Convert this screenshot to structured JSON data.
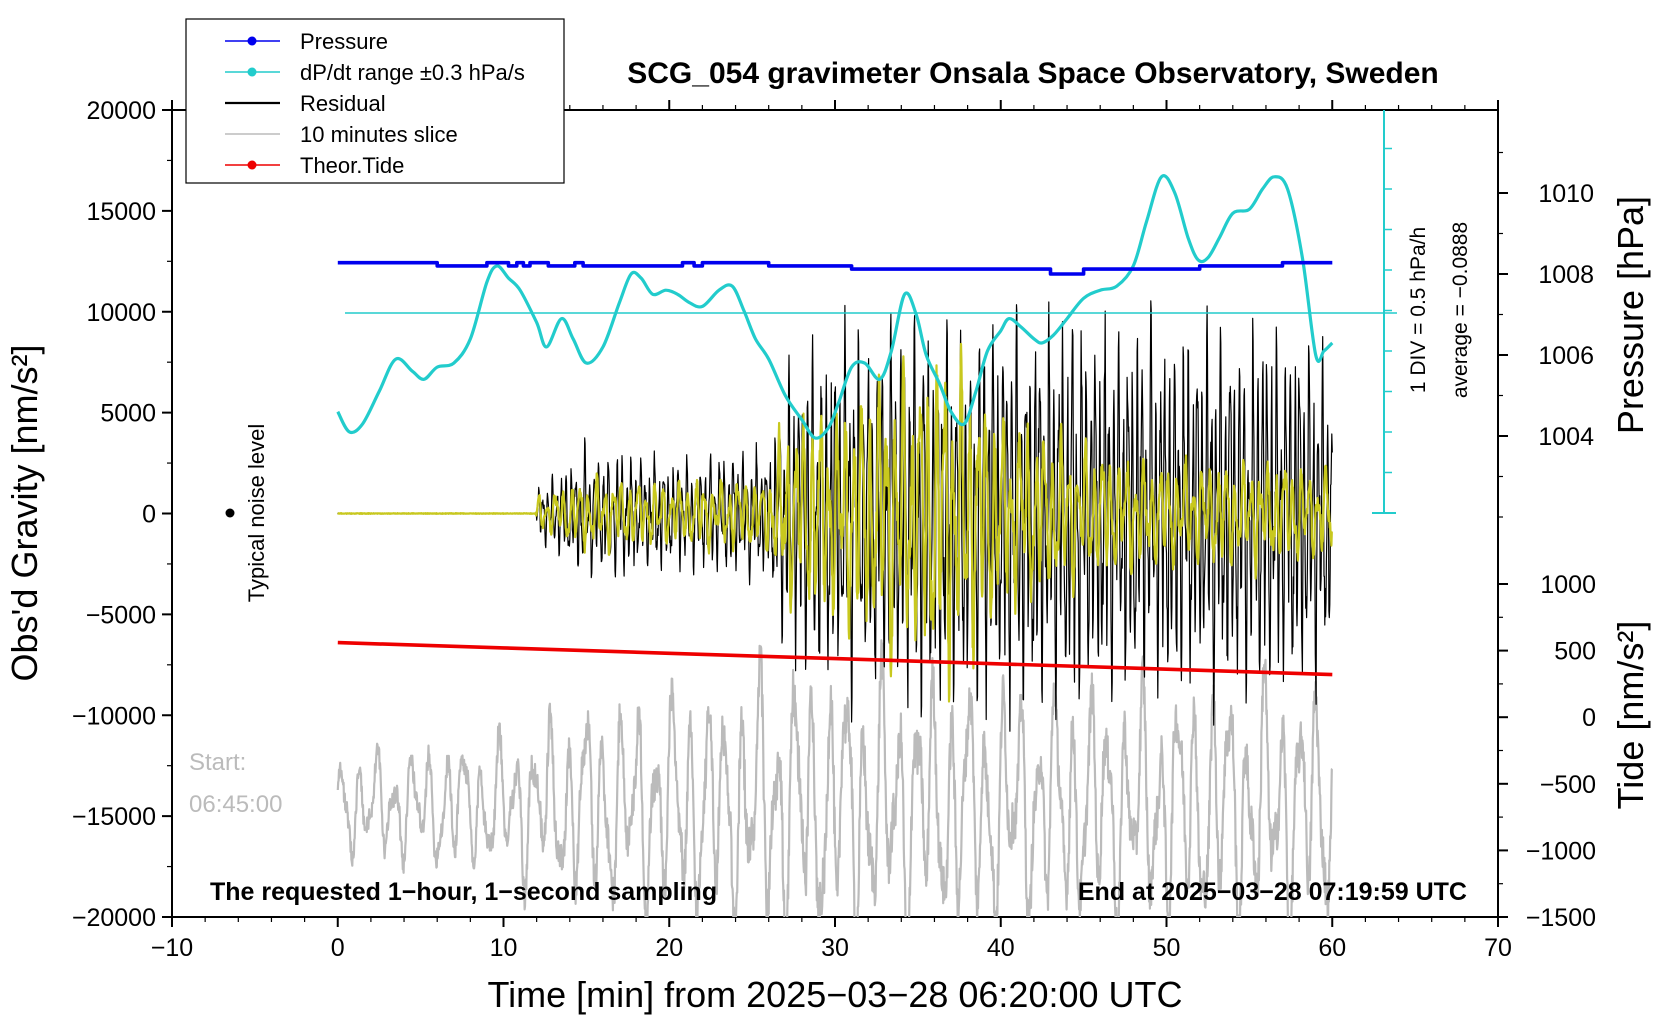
{
  "chart_data": {
    "type": "line",
    "title": "SCG_054 gravimeter Onsala Space Observatory, Sweden",
    "xlabel": "Time [min] from 2025−03−28 06:20:00 UTC",
    "ylabel_left": "Obs'd Gravity [nm/s²]",
    "ylabel_right_pressure": "Pressure [hPa]",
    "ylabel_right_tide": "Tide [nm/s²]",
    "xlim": [
      -10,
      70
    ],
    "ylim_gravity": [
      -20000,
      20000
    ],
    "ylim_pressure": [
      1002.0,
      1012.0
    ],
    "ylim_tide": [
      -1500,
      1500
    ],
    "x_ticks": [
      "−10",
      "0",
      "10",
      "20",
      "30",
      "40",
      "50",
      "60",
      "70"
    ],
    "y_ticks_gravity": [
      "20000",
      "15000",
      "10000",
      "5000",
      "0",
      "−5000",
      "−10000",
      "−15000",
      "−20000"
    ],
    "y_ticks_pressure": [
      "1010",
      "1008",
      "1006",
      "1004"
    ],
    "y_ticks_tide": [
      "1000",
      "500",
      "0",
      "−500",
      "−1000",
      "−1500"
    ],
    "legend": {
      "position": "top-left",
      "entries": [
        {
          "label": "Pressure",
          "color": "#0000ee",
          "marker": "dot"
        },
        {
          "label": "dP/dt range ±0.3 hPa/s",
          "color": "#22cccc",
          "marker": "dot"
        },
        {
          "label": "Residual",
          "color": "#000000",
          "marker": "none"
        },
        {
          "label": "10 minutes slice",
          "color": "#bbbbbb",
          "marker": "none"
        },
        {
          "label": "Theor.Tide",
          "color": "#ee0000",
          "marker": "dot"
        }
      ]
    },
    "annotations": {
      "noise_label": "Typical noise level",
      "start_label": "Start:",
      "start_time": "06:45:00",
      "bottom_left": "The requested 1−hour, 1−second sampling",
      "bottom_right": "End at 2025−03−28 07:19:59 UTC",
      "div_label": "1 DIV = 0.5 hPa/h",
      "average_label": "average = −0.0888"
    },
    "series": [
      {
        "name": "Pressure",
        "axis": "pressure",
        "color": "#0000ee",
        "x": [
          0,
          6,
          6,
          9,
          9,
          10.3,
          10.3,
          10.8,
          10.8,
          11.2,
          11.2,
          11.6,
          11.6,
          12.7,
          12.7,
          14.3,
          14.3,
          14.8,
          14.8,
          20.8,
          20.8,
          21.5,
          21.5,
          22.0,
          22.0,
          26.0,
          26.0,
          31.0,
          31.0,
          43.0,
          43.0,
          45.0,
          45.0,
          52.0,
          52.0,
          57.0,
          57.0,
          60.0
        ],
        "y": [
          1008.28,
          1008.28,
          1008.2,
          1008.2,
          1008.28,
          1008.28,
          1008.2,
          1008.2,
          1008.28,
          1008.28,
          1008.2,
          1008.2,
          1008.28,
          1008.28,
          1008.2,
          1008.2,
          1008.28,
          1008.28,
          1008.2,
          1008.2,
          1008.28,
          1008.28,
          1008.2,
          1008.2,
          1008.28,
          1008.28,
          1008.2,
          1008.2,
          1008.12,
          1008.12,
          1008.0,
          1008.0,
          1008.12,
          1008.12,
          1008.2,
          1008.2,
          1008.28,
          1008.28
        ]
      },
      {
        "name": "dP/dt range ±0.3 hPa/s",
        "axis": "pressure",
        "color": "#22cccc",
        "x": [
          0,
          0.7,
          1.5,
          2.5,
          3.5,
          4.5,
          5.2,
          6.0,
          7.0,
          8.0,
          9.0,
          9.6,
          10.3,
          11.0,
          12.0,
          12.6,
          13.5,
          14.2,
          15.0,
          16.0,
          17.0,
          17.7,
          18.3,
          19.0,
          19.8,
          20.5,
          21.2,
          22.0,
          23.0,
          23.8,
          24.5,
          25.2,
          26.0,
          27.0,
          28.0,
          28.8,
          29.6,
          30.2,
          31.0,
          31.8,
          32.7,
          33.4,
          34.2,
          34.9,
          35.5,
          36.3,
          37.0,
          37.8,
          38.5,
          39.2,
          40.0,
          40.5,
          41.2,
          42.0,
          42.5,
          43.2,
          44.0,
          45.0,
          46.0,
          47.0,
          48.0,
          48.8,
          49.7,
          50.5,
          51.3,
          51.9,
          52.5,
          53.2,
          54.0,
          55.0,
          55.8,
          56.5,
          57.3,
          58.2,
          59.0,
          59.5,
          60.0
        ],
        "y": [
          1004.6,
          1004.1,
          1004.3,
          1005.1,
          1005.9,
          1005.6,
          1005.4,
          1005.7,
          1005.8,
          1006.4,
          1007.8,
          1008.2,
          1007.9,
          1007.6,
          1006.8,
          1006.2,
          1006.9,
          1006.4,
          1005.8,
          1006.2,
          1007.3,
          1008.0,
          1007.9,
          1007.5,
          1007.6,
          1007.5,
          1007.3,
          1007.2,
          1007.6,
          1007.7,
          1007.1,
          1006.4,
          1005.9,
          1005.0,
          1004.4,
          1003.95,
          1004.2,
          1004.8,
          1005.7,
          1005.8,
          1005.4,
          1006.1,
          1007.5,
          1007.0,
          1006.0,
          1005.3,
          1004.6,
          1004.3,
          1005.1,
          1006.1,
          1006.6,
          1006.9,
          1006.7,
          1006.4,
          1006.3,
          1006.5,
          1006.9,
          1007.4,
          1007.6,
          1007.7,
          1008.2,
          1009.3,
          1010.4,
          1010.0,
          1008.9,
          1008.35,
          1008.4,
          1008.9,
          1009.5,
          1009.6,
          1010.1,
          1010.4,
          1010.1,
          1008.4,
          1006.0,
          1006.1,
          1006.3
        ]
      },
      {
        "name": "Theor.Tide",
        "axis": "tide",
        "color": "#ee0000",
        "x": [
          0,
          10,
          20,
          30,
          40,
          50,
          60
        ],
        "y": [
          560,
          520,
          480,
          440,
          400,
          360,
          320
        ]
      }
    ],
    "oscillations": [
      {
        "name": "Residual",
        "axis": "gravity",
        "color": "#000000",
        "x_start": 0,
        "x_end": 60,
        "onset": 12.0,
        "period_min": 0.28,
        "envelope_x": [
          0,
          11.9,
          12.1,
          15,
          20,
          26,
          27,
          30,
          35,
          40,
          45,
          50,
          55,
          59.5,
          60
        ],
        "envelope_amp": [
          60,
          60,
          1200,
          3000,
          2500,
          3000,
          6500,
          8000,
          9000,
          9000,
          9000,
          8500,
          8500,
          8500,
          5000
        ],
        "center": 0
      },
      {
        "name": "Residual (yellow overlay)",
        "axis": "gravity",
        "color": "#c8c81e",
        "x_start": 0,
        "x_end": 60,
        "onset": 12.0,
        "period_min": 0.5,
        "envelope_x": [
          0,
          11.9,
          12.1,
          15,
          20,
          26,
          27,
          30,
          34,
          37,
          40,
          45,
          50,
          55,
          60
        ],
        "envelope_amp": [
          40,
          40,
          800,
          1700,
          1500,
          1800,
          4500,
          5200,
          7000,
          7800,
          4800,
          3200,
          2500,
          2500,
          2200
        ],
        "center": 0
      },
      {
        "name": "10 minutes slice",
        "axis": "gravity",
        "color": "#bbbbbb",
        "x_start": 0,
        "x_end": 60,
        "onset": 0,
        "period_min": 1.05,
        "envelope_x": [
          0,
          10,
          15,
          20,
          25,
          27,
          30,
          35,
          40,
          45,
          50,
          55,
          60
        ],
        "envelope_amp": [
          2500,
          3500,
          5000,
          5500,
          6500,
          7000,
          7000,
          6500,
          6000,
          6000,
          6000,
          6500,
          6000
        ],
        "center": -14500
      }
    ]
  }
}
